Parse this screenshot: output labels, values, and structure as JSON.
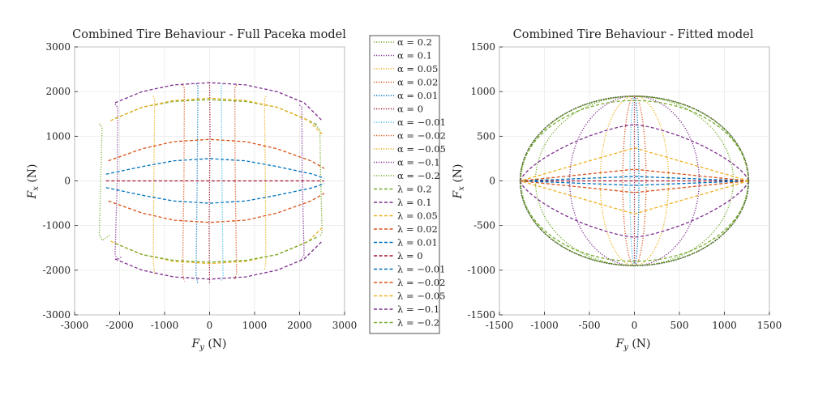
{
  "chart_data": [
    {
      "type": "line",
      "title": "Combined Tire Behaviour - Full Paceka model",
      "xlabel": "F_y (N)",
      "ylabel": "F_x (N)",
      "xlim": [
        -3000,
        3000
      ],
      "ylim": [
        -3000,
        3000
      ],
      "xticks": [
        -3000,
        -2000,
        -1000,
        0,
        1000,
        2000,
        3000
      ],
      "yticks": [
        -3000,
        -2000,
        -1000,
        0,
        1000,
        2000,
        3000
      ],
      "grid": true,
      "legend": "right",
      "series": [
        {
          "name": "α = 0.2",
          "color": "#77ac30",
          "dash": "dotted",
          "x": [
            -2450,
            -2390,
            -2420,
            -2450,
            -2390,
            -2300,
            -2200
          ],
          "y": [
            1280,
            1200,
            0,
            -1200,
            -1330,
            -1280,
            -1200
          ]
        },
        {
          "name": "α = 0.1",
          "color": "#7e2f8e",
          "dash": "dotted",
          "x": [
            -2100,
            -2040,
            -2050,
            -2100,
            -2040,
            -1960
          ],
          "y": [
            1720,
            1650,
            0,
            -1650,
            -1760,
            -1700
          ]
        },
        {
          "name": "α = 0.05",
          "color": "#edb120",
          "dash": "dotted",
          "x": [
            -1250,
            -1220,
            -1240,
            -1250,
            -1220
          ],
          "y": [
            1900,
            1820,
            0,
            -1820,
            -2100
          ]
        },
        {
          "name": "α = 0.02",
          "color": "#d95319",
          "dash": "dotted",
          "x": [
            -600,
            -560,
            -570,
            -600,
            -560
          ],
          "y": [
            2150,
            2080,
            0,
            -2080,
            -2250
          ]
        },
        {
          "name": "α = 0.01",
          "color": "#0072bd",
          "dash": "dotted",
          "x": [
            -300,
            -260,
            -275,
            -300,
            -260
          ],
          "y": [
            2180,
            2120,
            0,
            -2120,
            -2300
          ]
        },
        {
          "name": "α = 0",
          "color": "#a2142f",
          "dash": "dotted",
          "x": [
            0,
            10,
            0,
            -10,
            0
          ],
          "y": [
            2200,
            1100,
            0,
            -1100,
            -2300
          ]
        },
        {
          "name": "α = −0.01",
          "color": "#4dbeee",
          "dash": "dotted",
          "x": [
            300,
            260,
            275,
            300,
            260
          ],
          "y": [
            2180,
            2120,
            0,
            -2120,
            -2250
          ]
        },
        {
          "name": "α = −0.02",
          "color": "#d95319",
          "dash": "dotted",
          "x": [
            600,
            560,
            570,
            600,
            560
          ],
          "y": [
            2150,
            2080,
            0,
            -2080,
            -2200
          ]
        },
        {
          "name": "α = −0.05",
          "color": "#edb120",
          "dash": "dotted",
          "x": [
            1250,
            1220,
            1240,
            1250,
            1220
          ],
          "y": [
            1900,
            1820,
            0,
            -1820,
            -2000
          ]
        },
        {
          "name": "α = −0.1",
          "color": "#7e2f8e",
          "dash": "dotted",
          "x": [
            2000,
            2050,
            2060,
            2100,
            2040
          ],
          "y": [
            1700,
            1650,
            0,
            -1650,
            -1760
          ]
        },
        {
          "name": "α = −0.2",
          "color": "#77ac30",
          "dash": "dotted",
          "x": [
            2350,
            2450,
            2470,
            2500,
            2450
          ],
          "y": [
            1250,
            1150,
            0,
            -1150,
            -1250
          ]
        },
        {
          "name": "λ = 0.2",
          "color": "#77ac30",
          "dash": "dashed",
          "x": [
            -2100,
            -1500,
            -800,
            0,
            800,
            1500,
            2100,
            2400
          ],
          "y": [
            1400,
            1650,
            1780,
            1820,
            1780,
            1650,
            1400,
            1250
          ]
        },
        {
          "name": "λ = 0.1",
          "color": "#7e2f8e",
          "dash": "dashed",
          "x": [
            -2100,
            -1500,
            -800,
            0,
            800,
            1500,
            2100,
            2500
          ],
          "y": [
            1750,
            2000,
            2150,
            2200,
            2150,
            2000,
            1750,
            1350
          ]
        },
        {
          "name": "λ = 0.05",
          "color": "#edb120",
          "dash": "dashed",
          "x": [
            -2200,
            -1500,
            -800,
            0,
            800,
            1500,
            2200,
            2500
          ],
          "y": [
            1350,
            1650,
            1800,
            1850,
            1800,
            1650,
            1350,
            1050
          ]
        },
        {
          "name": "λ = 0.02",
          "color": "#d95319",
          "dash": "dashed",
          "x": [
            -2250,
            -1500,
            -800,
            0,
            800,
            1500,
            2250,
            2550
          ],
          "y": [
            450,
            720,
            880,
            930,
            880,
            720,
            450,
            280
          ]
        },
        {
          "name": "λ = 0.01",
          "color": "#0072bd",
          "dash": "dashed",
          "x": [
            -2300,
            -1500,
            -800,
            0,
            800,
            1500,
            2300,
            2550
          ],
          "y": [
            150,
            320,
            450,
            500,
            450,
            320,
            150,
            60
          ]
        },
        {
          "name": "λ = 0",
          "color": "#a2142f",
          "dash": "dashed",
          "x": [
            -2300,
            -1200,
            0,
            1200,
            2550
          ],
          "y": [
            0,
            0,
            0,
            0,
            0
          ]
        },
        {
          "name": "λ = −0.01",
          "color": "#0072bd",
          "dash": "dashed",
          "x": [
            -2300,
            -1500,
            -800,
            0,
            800,
            1500,
            2300,
            2550
          ],
          "y": [
            -150,
            -320,
            -450,
            -500,
            -450,
            -320,
            -150,
            -60
          ]
        },
        {
          "name": "λ = −0.02",
          "color": "#d95319",
          "dash": "dashed",
          "x": [
            -2250,
            -1500,
            -800,
            0,
            800,
            1500,
            2250,
            2550
          ],
          "y": [
            -450,
            -720,
            -880,
            -930,
            -880,
            -720,
            -450,
            -280
          ]
        },
        {
          "name": "λ = −0.05",
          "color": "#edb120",
          "dash": "dashed",
          "x": [
            -2200,
            -1500,
            -800,
            0,
            800,
            1500,
            2200,
            2500
          ],
          "y": [
            -1350,
            -1650,
            -1800,
            -1850,
            -1800,
            -1650,
            -1350,
            -1050
          ]
        },
        {
          "name": "λ = −0.1",
          "color": "#7e2f8e",
          "dash": "dashed",
          "x": [
            -2100,
            -1500,
            -800,
            0,
            800,
            1500,
            2100,
            2500
          ],
          "y": [
            -1750,
            -2000,
            -2150,
            -2200,
            -2150,
            -2000,
            -1750,
            -1350
          ]
        },
        {
          "name": "λ = −0.2",
          "color": "#77ac30",
          "dash": "dashed",
          "x": [
            -2100,
            -1500,
            -800,
            0,
            800,
            1500,
            2100,
            2400
          ],
          "y": [
            -1400,
            -1650,
            -1780,
            -1820,
            -1780,
            -1650,
            -1400,
            -1250
          ]
        }
      ]
    },
    {
      "type": "line",
      "title": "Combined Tire Behaviour - Fitted model",
      "xlabel": "F_y (N)",
      "ylabel": "F_x (N)",
      "xlim": [
        -1500,
        1500
      ],
      "ylim": [
        -1500,
        1500
      ],
      "xticks": [
        -1500,
        -1000,
        -500,
        0,
        500,
        1000,
        1500
      ],
      "yticks": [
        -1500,
        -1000,
        -500,
        0,
        500,
        1000,
        1500
      ],
      "grid": true,
      "fitted": {
        "max_fy": 1270,
        "max_fx": 950,
        "alpha_fy": [
          0,
          50,
          130,
          380,
          720,
          1100,
          1260
        ],
        "lambda_fx": [
          0,
          50,
          130,
          370,
          630,
          900,
          945
        ]
      }
    }
  ]
}
